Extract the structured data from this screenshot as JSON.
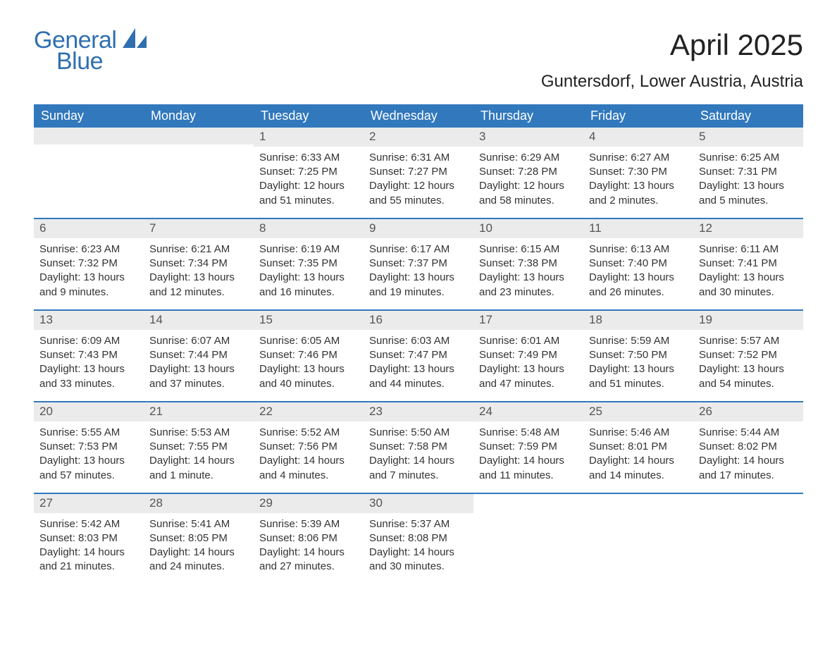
{
  "brand": {
    "word1": "General",
    "word2": "Blue",
    "color": "#2f6fb0"
  },
  "title": "April 2025",
  "location": "Guntersdorf, Lower Austria, Austria",
  "colors": {
    "header_bg": "#3178bd",
    "header_text": "#ffffff",
    "daynum_bg": "#ebebeb",
    "row_divider": "#3178bd",
    "text": "#333333",
    "page_bg": "#ffffff"
  },
  "weekdays": [
    "Sunday",
    "Monday",
    "Tuesday",
    "Wednesday",
    "Thursday",
    "Friday",
    "Saturday"
  ],
  "weeks": [
    [
      null,
      null,
      {
        "n": "1",
        "sunrise": "Sunrise: 6:33 AM",
        "sunset": "Sunset: 7:25 PM",
        "dl1": "Daylight: 12 hours",
        "dl2": "and 51 minutes."
      },
      {
        "n": "2",
        "sunrise": "Sunrise: 6:31 AM",
        "sunset": "Sunset: 7:27 PM",
        "dl1": "Daylight: 12 hours",
        "dl2": "and 55 minutes."
      },
      {
        "n": "3",
        "sunrise": "Sunrise: 6:29 AM",
        "sunset": "Sunset: 7:28 PM",
        "dl1": "Daylight: 12 hours",
        "dl2": "and 58 minutes."
      },
      {
        "n": "4",
        "sunrise": "Sunrise: 6:27 AM",
        "sunset": "Sunset: 7:30 PM",
        "dl1": "Daylight: 13 hours",
        "dl2": "and 2 minutes."
      },
      {
        "n": "5",
        "sunrise": "Sunrise: 6:25 AM",
        "sunset": "Sunset: 7:31 PM",
        "dl1": "Daylight: 13 hours",
        "dl2": "and 5 minutes."
      }
    ],
    [
      {
        "n": "6",
        "sunrise": "Sunrise: 6:23 AM",
        "sunset": "Sunset: 7:32 PM",
        "dl1": "Daylight: 13 hours",
        "dl2": "and 9 minutes."
      },
      {
        "n": "7",
        "sunrise": "Sunrise: 6:21 AM",
        "sunset": "Sunset: 7:34 PM",
        "dl1": "Daylight: 13 hours",
        "dl2": "and 12 minutes."
      },
      {
        "n": "8",
        "sunrise": "Sunrise: 6:19 AM",
        "sunset": "Sunset: 7:35 PM",
        "dl1": "Daylight: 13 hours",
        "dl2": "and 16 minutes."
      },
      {
        "n": "9",
        "sunrise": "Sunrise: 6:17 AM",
        "sunset": "Sunset: 7:37 PM",
        "dl1": "Daylight: 13 hours",
        "dl2": "and 19 minutes."
      },
      {
        "n": "10",
        "sunrise": "Sunrise: 6:15 AM",
        "sunset": "Sunset: 7:38 PM",
        "dl1": "Daylight: 13 hours",
        "dl2": "and 23 minutes."
      },
      {
        "n": "11",
        "sunrise": "Sunrise: 6:13 AM",
        "sunset": "Sunset: 7:40 PM",
        "dl1": "Daylight: 13 hours",
        "dl2": "and 26 minutes."
      },
      {
        "n": "12",
        "sunrise": "Sunrise: 6:11 AM",
        "sunset": "Sunset: 7:41 PM",
        "dl1": "Daylight: 13 hours",
        "dl2": "and 30 minutes."
      }
    ],
    [
      {
        "n": "13",
        "sunrise": "Sunrise: 6:09 AM",
        "sunset": "Sunset: 7:43 PM",
        "dl1": "Daylight: 13 hours",
        "dl2": "and 33 minutes."
      },
      {
        "n": "14",
        "sunrise": "Sunrise: 6:07 AM",
        "sunset": "Sunset: 7:44 PM",
        "dl1": "Daylight: 13 hours",
        "dl2": "and 37 minutes."
      },
      {
        "n": "15",
        "sunrise": "Sunrise: 6:05 AM",
        "sunset": "Sunset: 7:46 PM",
        "dl1": "Daylight: 13 hours",
        "dl2": "and 40 minutes."
      },
      {
        "n": "16",
        "sunrise": "Sunrise: 6:03 AM",
        "sunset": "Sunset: 7:47 PM",
        "dl1": "Daylight: 13 hours",
        "dl2": "and 44 minutes."
      },
      {
        "n": "17",
        "sunrise": "Sunrise: 6:01 AM",
        "sunset": "Sunset: 7:49 PM",
        "dl1": "Daylight: 13 hours",
        "dl2": "and 47 minutes."
      },
      {
        "n": "18",
        "sunrise": "Sunrise: 5:59 AM",
        "sunset": "Sunset: 7:50 PM",
        "dl1": "Daylight: 13 hours",
        "dl2": "and 51 minutes."
      },
      {
        "n": "19",
        "sunrise": "Sunrise: 5:57 AM",
        "sunset": "Sunset: 7:52 PM",
        "dl1": "Daylight: 13 hours",
        "dl2": "and 54 minutes."
      }
    ],
    [
      {
        "n": "20",
        "sunrise": "Sunrise: 5:55 AM",
        "sunset": "Sunset: 7:53 PM",
        "dl1": "Daylight: 13 hours",
        "dl2": "and 57 minutes."
      },
      {
        "n": "21",
        "sunrise": "Sunrise: 5:53 AM",
        "sunset": "Sunset: 7:55 PM",
        "dl1": "Daylight: 14 hours",
        "dl2": "and 1 minute."
      },
      {
        "n": "22",
        "sunrise": "Sunrise: 5:52 AM",
        "sunset": "Sunset: 7:56 PM",
        "dl1": "Daylight: 14 hours",
        "dl2": "and 4 minutes."
      },
      {
        "n": "23",
        "sunrise": "Sunrise: 5:50 AM",
        "sunset": "Sunset: 7:58 PM",
        "dl1": "Daylight: 14 hours",
        "dl2": "and 7 minutes."
      },
      {
        "n": "24",
        "sunrise": "Sunrise: 5:48 AM",
        "sunset": "Sunset: 7:59 PM",
        "dl1": "Daylight: 14 hours",
        "dl2": "and 11 minutes."
      },
      {
        "n": "25",
        "sunrise": "Sunrise: 5:46 AM",
        "sunset": "Sunset: 8:01 PM",
        "dl1": "Daylight: 14 hours",
        "dl2": "and 14 minutes."
      },
      {
        "n": "26",
        "sunrise": "Sunrise: 5:44 AM",
        "sunset": "Sunset: 8:02 PM",
        "dl1": "Daylight: 14 hours",
        "dl2": "and 17 minutes."
      }
    ],
    [
      {
        "n": "27",
        "sunrise": "Sunrise: 5:42 AM",
        "sunset": "Sunset: 8:03 PM",
        "dl1": "Daylight: 14 hours",
        "dl2": "and 21 minutes."
      },
      {
        "n": "28",
        "sunrise": "Sunrise: 5:41 AM",
        "sunset": "Sunset: 8:05 PM",
        "dl1": "Daylight: 14 hours",
        "dl2": "and 24 minutes."
      },
      {
        "n": "29",
        "sunrise": "Sunrise: 5:39 AM",
        "sunset": "Sunset: 8:06 PM",
        "dl1": "Daylight: 14 hours",
        "dl2": "and 27 minutes."
      },
      {
        "n": "30",
        "sunrise": "Sunrise: 5:37 AM",
        "sunset": "Sunset: 8:08 PM",
        "dl1": "Daylight: 14 hours",
        "dl2": "and 30 minutes."
      },
      null,
      null,
      null
    ]
  ]
}
